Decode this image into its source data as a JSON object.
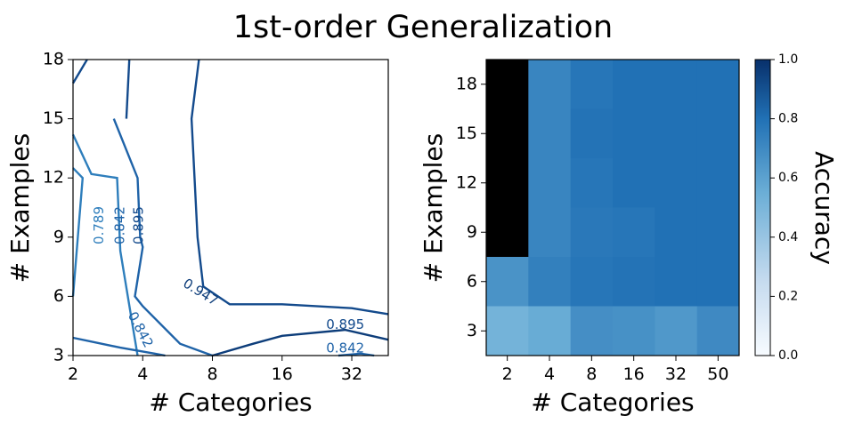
{
  "title": "1st-order Generalization",
  "chart_data": [
    {
      "type": "contour",
      "xlabel": "# Categories",
      "ylabel": "# Examples",
      "x_ticks": [
        "2",
        "4",
        "8",
        "16",
        "32"
      ],
      "y_ticks": [
        "3",
        "6",
        "9",
        "12",
        "15",
        "18"
      ],
      "contour_levels": [
        "0.789",
        "0.842",
        "0.895",
        "0.947"
      ],
      "lines": [
        {
          "level": "0.789",
          "points": [
            [
              2,
              6.0
            ],
            [
              2.2,
              12.0
            ],
            [
              2.0,
              12.5
            ]
          ]
        },
        {
          "level": "0.789",
          "points": [
            [
              2,
              14.2
            ],
            [
              2.4,
              12.2
            ],
            [
              3.1,
              12.0
            ],
            [
              3.2,
              8.3
            ],
            [
              3.8,
              3.0
            ]
          ]
        },
        {
          "level": "0.842",
          "points": [
            [
              2,
              3.9
            ],
            [
              3.2,
              3.4
            ],
            [
              4.5,
              3.1
            ],
            [
              5.0,
              3.0
            ]
          ]
        },
        {
          "level": "0.842",
          "points": [
            [
              3.0,
              15.0
            ],
            [
              3.8,
              12.0
            ],
            [
              3.9,
              9.0
            ],
            [
              4.0,
              8.5
            ],
            [
              3.7,
              6.0
            ],
            [
              4.0,
              5.5
            ],
            [
              5.8,
              3.6
            ],
            [
              8,
              3.0
            ],
            [
              8.0,
              3.0
            ]
          ]
        },
        {
          "level": "0.895",
          "points": [
            [
              2,
              16.8
            ],
            [
              2.3,
              18.0
            ]
          ]
        },
        {
          "level": "0.895",
          "points": [
            [
              3.4,
              15.0
            ],
            [
              3.5,
              18.0
            ]
          ]
        },
        {
          "level": "0.895",
          "points": [
            [
              7.0,
              18.0
            ],
            [
              6.5,
              15.0
            ],
            [
              6.9,
              9.0
            ],
            [
              7.3,
              6.5
            ],
            [
              9.5,
              5.6
            ],
            [
              16,
              5.6
            ],
            [
              32,
              5.4
            ],
            [
              46,
              5.1
            ]
          ]
        },
        {
          "level": "0.947",
          "points": [
            [
              8,
              3.0
            ],
            [
              12,
              3.6
            ],
            [
              16,
              4.0
            ],
            [
              30,
              4.3
            ],
            [
              46,
              3.8
            ]
          ]
        },
        {
          "level": "0.842",
          "points": [
            [
              28,
              3.0
            ],
            [
              35,
              3.1
            ],
            [
              40,
              3.0
            ]
          ]
        }
      ],
      "xlim": [
        2,
        46
      ],
      "ylim": [
        3,
        18
      ]
    },
    {
      "type": "heatmap",
      "xlabel": "# Categories",
      "ylabel": "# Examples",
      "x_categories": [
        "2",
        "4",
        "8",
        "16",
        "32",
        "50"
      ],
      "y_categories": [
        "18",
        "15",
        "12",
        "9",
        "6",
        "3"
      ],
      "values": [
        [
          0.0,
          0.72,
          0.78,
          0.8,
          0.8,
          0.8
        ],
        [
          0.0,
          0.72,
          0.79,
          0.8,
          0.8,
          0.8
        ],
        [
          0.0,
          0.72,
          0.78,
          0.8,
          0.8,
          0.8
        ],
        [
          0.0,
          0.72,
          0.77,
          0.78,
          0.8,
          0.8
        ],
        [
          0.66,
          0.74,
          0.78,
          0.79,
          0.8,
          0.8
        ],
        [
          0.52,
          0.56,
          0.68,
          0.67,
          0.64,
          0.7
        ]
      ],
      "colorbar": {
        "label": "Accuracy",
        "ticks": [
          "0.0",
          "0.2",
          "0.4",
          "0.6",
          "0.8",
          "1.0"
        ],
        "range": [
          0,
          1
        ]
      },
      "colors": {
        "low": "#f7fbff",
        "mid": "#6baed6",
        "high": "#08306b"
      }
    }
  ]
}
